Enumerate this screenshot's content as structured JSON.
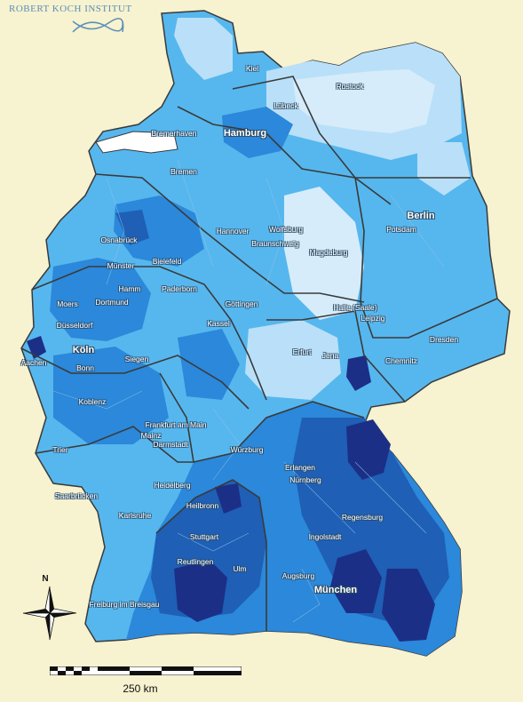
{
  "logo": {
    "text": "ROBERT KOCH INSTITUT"
  },
  "compass": {
    "label": "N"
  },
  "scale": {
    "label": "250 km"
  },
  "colors": {
    "background": "#f7f2cf",
    "water": "#ffffff",
    "shade_1": "#d6ecfa",
    "shade_2": "#b9e0f8",
    "shade_3": "#56b7ee",
    "shade_4": "#2b88da",
    "shade_5": "#1f5fb6",
    "shade_6": "#1c2f86",
    "border": "#3a3a3a"
  },
  "cities": [
    {
      "name": "Kiel",
      "big": false
    },
    {
      "name": "Rostock",
      "big": false
    },
    {
      "name": "Lübeck",
      "big": false
    },
    {
      "name": "Hamburg",
      "big": true
    },
    {
      "name": "Bremerhaven",
      "big": false
    },
    {
      "name": "Bremen",
      "big": false
    },
    {
      "name": "Berlin",
      "big": true
    },
    {
      "name": "Potsdam",
      "big": false
    },
    {
      "name": "Hannover",
      "big": false
    },
    {
      "name": "Wolfsburg",
      "big": false
    },
    {
      "name": "Braunschweig",
      "big": false
    },
    {
      "name": "Magdeburg",
      "big": false
    },
    {
      "name": "Osnabrück",
      "big": false
    },
    {
      "name": "Bielefeld",
      "big": false
    },
    {
      "name": "Münster",
      "big": false
    },
    {
      "name": "Hamm",
      "big": false
    },
    {
      "name": "Paderborn",
      "big": false
    },
    {
      "name": "Moers",
      "big": false
    },
    {
      "name": "Dortmund",
      "big": false
    },
    {
      "name": "Düsseldorf",
      "big": false
    },
    {
      "name": "Göttingen",
      "big": false
    },
    {
      "name": "Halle (Saale)",
      "big": false
    },
    {
      "name": "Leipzig",
      "big": false
    },
    {
      "name": "Kassel",
      "big": false
    },
    {
      "name": "Köln",
      "big": true
    },
    {
      "name": "Aachen",
      "big": false
    },
    {
      "name": "Bonn",
      "big": false
    },
    {
      "name": "Siegen",
      "big": false
    },
    {
      "name": "Erfurt",
      "big": false
    },
    {
      "name": "Jena",
      "big": false
    },
    {
      "name": "Dresden",
      "big": false
    },
    {
      "name": "Chemnitz",
      "big": false
    },
    {
      "name": "Koblenz",
      "big": false
    },
    {
      "name": "Frankfurt am Main",
      "big": false
    },
    {
      "name": "Mainz",
      "big": false
    },
    {
      "name": "Darmstadt",
      "big": false
    },
    {
      "name": "Trier",
      "big": false
    },
    {
      "name": "Würzburg",
      "big": false
    },
    {
      "name": "Erlangen",
      "big": false
    },
    {
      "name": "Nürnberg",
      "big": false
    },
    {
      "name": "Heidelberg",
      "big": false
    },
    {
      "name": "Saarbrücken",
      "big": false
    },
    {
      "name": "Heilbronn",
      "big": false
    },
    {
      "name": "Karlsruhe",
      "big": false
    },
    {
      "name": "Regensburg",
      "big": false
    },
    {
      "name": "Stuttgart",
      "big": false
    },
    {
      "name": "Ingolstadt",
      "big": false
    },
    {
      "name": "Reutlingen",
      "big": false
    },
    {
      "name": "Ulm",
      "big": false
    },
    {
      "name": "Augsburg",
      "big": false
    },
    {
      "name": "München",
      "big": true
    },
    {
      "name": "Freiburg im Breisgau",
      "big": false
    }
  ]
}
